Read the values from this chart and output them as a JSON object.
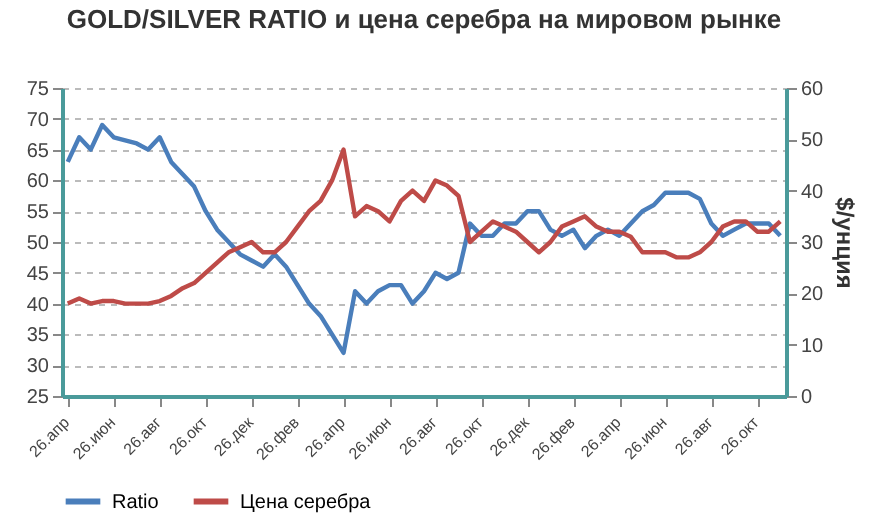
{
  "chart_data": {
    "type": "line",
    "title": "GOLD/SILVER RATIO и цена серебра на мировом рынке",
    "y2label": "$/унция",
    "categories": [
      "26.апр",
      null,
      null,
      null,
      "26.июн",
      null,
      null,
      null,
      "26.авг",
      null,
      null,
      null,
      "26.окт",
      null,
      null,
      null,
      "26.дек",
      null,
      null,
      null,
      "26.фев",
      null,
      null,
      null,
      "26.апр",
      null,
      null,
      null,
      "26.июн",
      null,
      null,
      null,
      "26.авг",
      null,
      null,
      null,
      "26.окт",
      null,
      null,
      null,
      "26.дек",
      null,
      null,
      null,
      "26.фев",
      null,
      null,
      null,
      "26.апр",
      null,
      null,
      null,
      "26.июн",
      null,
      null,
      null,
      "26.авг",
      null,
      null,
      null,
      "26.окт",
      null,
      null
    ],
    "series": [
      {
        "name": "Ratio",
        "color": "#4a7ebb",
        "values": [
          63,
          67,
          65,
          69,
          67,
          66.5,
          66,
          65,
          67,
          63,
          61,
          59,
          55,
          52,
          50,
          48,
          47,
          46,
          48,
          46,
          43,
          40,
          38,
          35,
          32,
          42,
          40,
          42,
          43,
          43,
          40,
          42,
          45,
          44,
          45,
          53,
          51,
          51,
          53,
          53,
          55,
          55,
          52,
          51,
          52,
          49,
          51,
          52,
          51,
          53,
          55,
          56,
          58,
          58,
          58,
          57,
          53,
          51,
          52,
          53,
          53,
          53,
          51
        ]
      },
      {
        "name": "Цена серебра",
        "color": "#be4b48",
        "axis": "y2",
        "values": [
          18,
          19,
          18,
          18.5,
          18.5,
          18,
          18,
          18,
          18.5,
          19.5,
          21,
          22,
          24,
          26,
          28,
          29,
          30,
          28,
          28,
          30,
          33,
          36,
          38,
          42,
          48,
          35,
          37,
          36,
          34,
          38,
          40,
          38,
          42,
          41,
          39,
          30,
          32,
          34,
          33,
          32,
          30,
          28,
          30,
          33,
          34,
          35,
          33,
          32,
          32,
          31,
          28,
          28,
          28,
          27,
          27,
          28,
          30,
          33,
          34,
          34,
          32,
          32,
          34
        ]
      }
    ],
    "ylim": [
      25,
      75
    ],
    "yticks": [
      25,
      30,
      35,
      40,
      45,
      50,
      55,
      60,
      65,
      70,
      75
    ],
    "y2lim": [
      0,
      60
    ],
    "y2ticks": [
      0,
      10,
      20,
      30,
      40,
      50,
      60
    ],
    "grid": "y",
    "legend": "bottom",
    "line_style": "solid"
  }
}
